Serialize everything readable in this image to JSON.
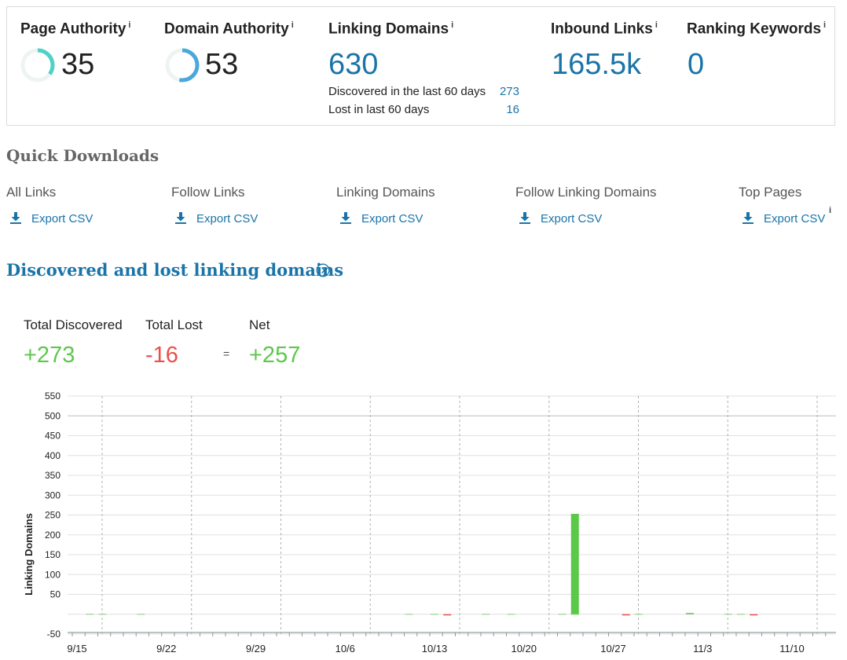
{
  "metrics": {
    "page_authority": {
      "label": "Page Authority",
      "info": "i",
      "value": "35",
      "score": 35
    },
    "domain_authority": {
      "label": "Domain Authority",
      "info": "i",
      "value": "53",
      "score": 53
    },
    "linking_domains": {
      "label": "Linking Domains",
      "info": "i",
      "value": "630",
      "discovered_label": "Discovered in the last 60 days",
      "discovered_value": "273",
      "lost_label": "Lost in last 60 days",
      "lost_value": "16"
    },
    "inbound_links": {
      "label": "Inbound Links",
      "info": "i",
      "value": "165.5k"
    },
    "ranking_keywords": {
      "label": "Ranking Keywords",
      "info": "i",
      "value": "0"
    }
  },
  "quick_downloads": {
    "title": "Quick Downloads",
    "items": [
      {
        "label": "All Links",
        "action": "Export CSV"
      },
      {
        "label": "Follow Links",
        "action": "Export CSV"
      },
      {
        "label": "Linking Domains",
        "action": "Export CSV"
      },
      {
        "label": "Follow Linking Domains",
        "action": "Export CSV"
      },
      {
        "label": "Top Pages",
        "action": "Export CSV",
        "info": "i"
      }
    ]
  },
  "discovered_lost": {
    "title": "Discovered and lost linking domains",
    "total_discovered_label": "Total Discovered",
    "total_discovered": "+273",
    "total_lost_label": "Total Lost",
    "total_lost": "-16",
    "equals": "=",
    "net_label": "Net",
    "net": "+257"
  },
  "colors": {
    "accent": "#1a74a8",
    "positive": "#5cc84a",
    "negative": "#e8504a",
    "ring_pa": "#4fd1c5",
    "ring_da": "#4aa8dc"
  },
  "chart_data": {
    "type": "bar",
    "ylabel": "Linking Domains",
    "ylim": [
      -50,
      550
    ],
    "yticks": [
      "550",
      "500",
      "450",
      "400",
      "350",
      "300",
      "250",
      "200",
      "150",
      "100",
      "50",
      "-50"
    ],
    "xticks": [
      "9/15",
      "9/22",
      "9/29",
      "10/6",
      "10/13",
      "10/20",
      "10/27",
      "11/3",
      "11/10"
    ],
    "grid": true,
    "series": [
      {
        "color": "#5cc84a",
        "values": [
          {
            "x": "10/24",
            "y": 253
          },
          {
            "x": "11/2",
            "y": 3
          }
        ]
      },
      {
        "color": "#e8504a",
        "values": [
          {
            "x": "10/14",
            "y": -2
          },
          {
            "x": "10/28",
            "y": -2
          },
          {
            "x": "11/7",
            "y": -2
          }
        ]
      }
    ]
  }
}
